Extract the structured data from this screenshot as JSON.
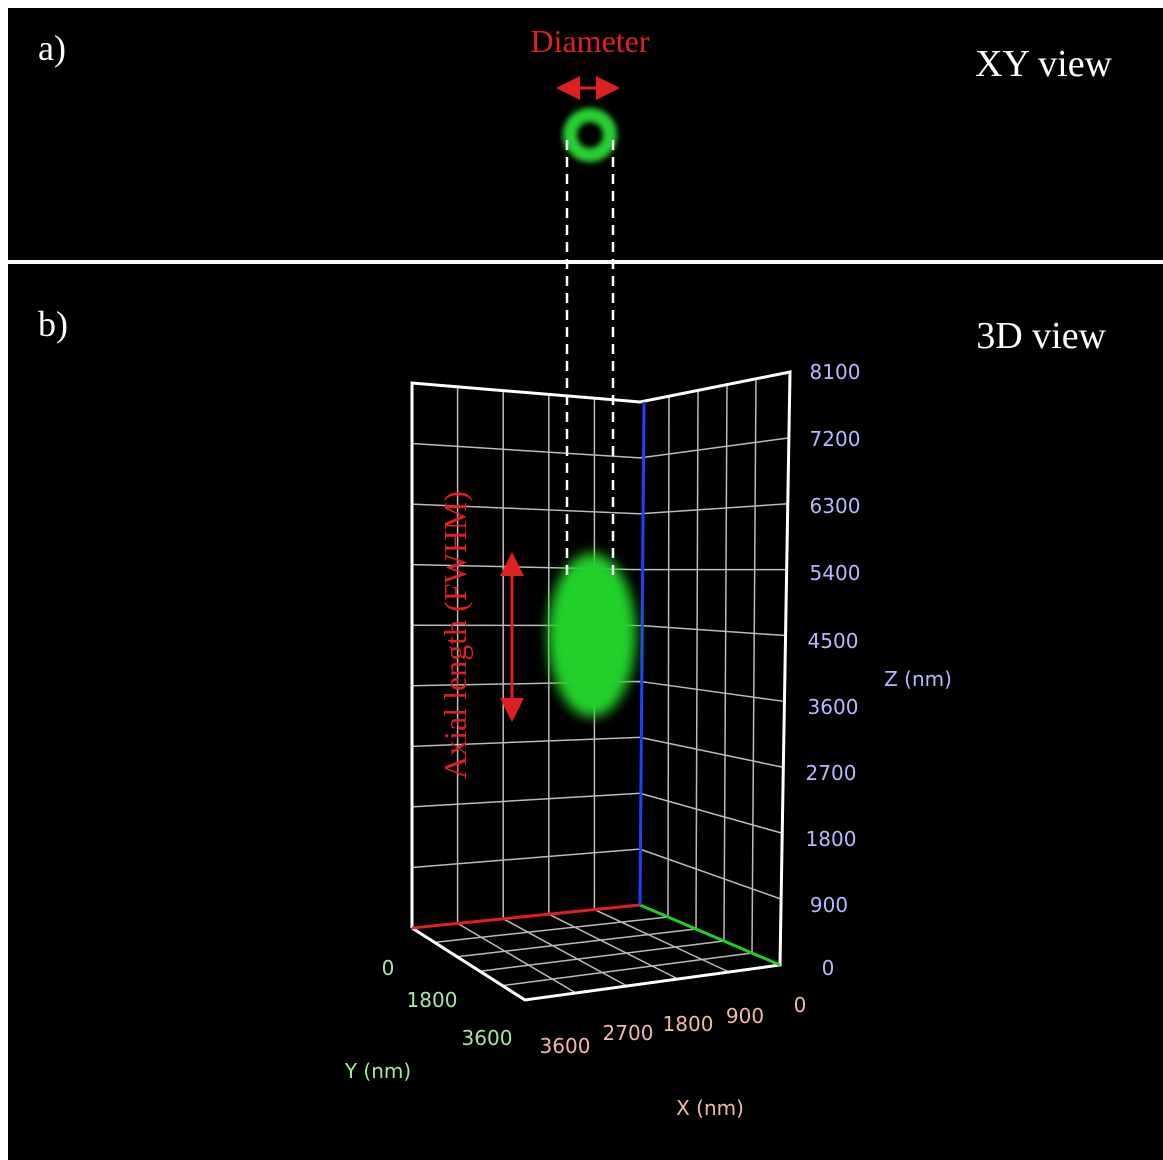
{
  "panel_a": {
    "label": "a)",
    "title": "XY view",
    "annotation": "Diameter"
  },
  "panel_b": {
    "label": "b)",
    "title": "3D view",
    "annotation": "Axial length (FWHM)",
    "z_axis": {
      "label": "Z (nm)",
      "ticks": [
        8100,
        7200,
        6300,
        5400,
        4500,
        3600,
        2700,
        1800,
        900,
        0
      ]
    },
    "y_axis": {
      "label": "Y (nm)",
      "ticks": [
        0,
        1800,
        3600
      ]
    },
    "x_axis": {
      "label": "X (nm)",
      "ticks": [
        3600,
        2700,
        1800,
        900,
        0
      ]
    }
  }
}
